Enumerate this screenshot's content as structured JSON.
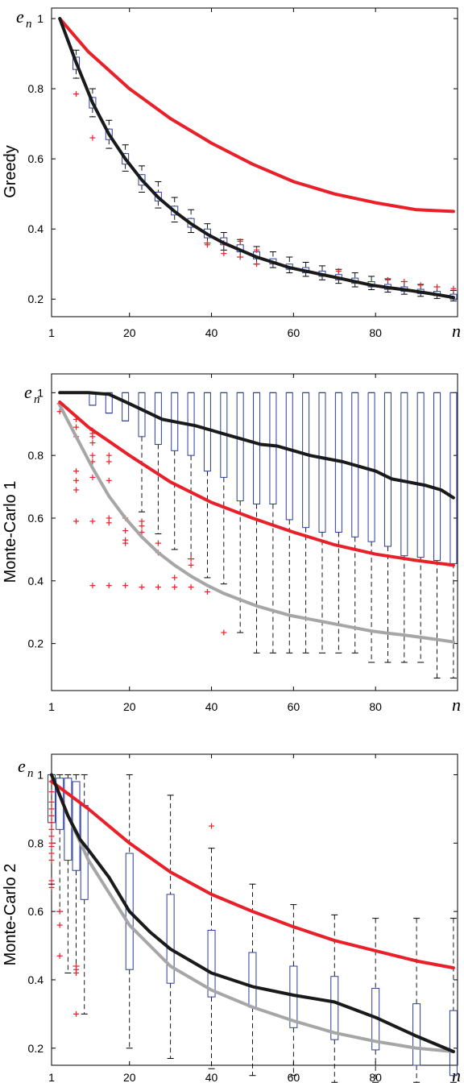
{
  "chart_data": [
    {
      "type": "line",
      "panel": "Greedy",
      "ylabel": "Greedy",
      "ysym": "e",
      "ysub": "n",
      "xsym": "n",
      "xlim": [
        1,
        100
      ],
      "ylim": [
        0.15,
        1.03
      ],
      "xticks": [
        "1",
        "20",
        "40",
        "60",
        "80"
      ],
      "xtick_values": [
        1,
        20,
        40,
        60,
        80
      ],
      "yticks": [
        "0.2",
        "0.4",
        "0.6",
        "0.8",
        "1"
      ],
      "ytick_values": [
        0.2,
        0.4,
        0.6,
        0.8,
        1
      ],
      "series": [
        {
          "color": "#e8202a",
          "x": [
            3,
            10,
            20,
            30,
            40,
            50,
            60,
            70,
            80,
            90,
            99
          ],
          "y": [
            1.0,
            0.905,
            0.8,
            0.715,
            0.645,
            0.585,
            0.535,
            0.5,
            0.475,
            0.455,
            0.45
          ]
        },
        {
          "color": "#1a1a1a",
          "x": [
            3,
            7,
            11,
            15,
            19,
            23,
            27,
            31,
            35,
            39,
            43,
            47,
            51,
            55,
            59,
            63,
            67,
            71,
            75,
            79,
            83,
            87,
            91,
            95,
            99
          ],
          "y": [
            1.0,
            0.875,
            0.76,
            0.67,
            0.6,
            0.54,
            0.49,
            0.45,
            0.415,
            0.385,
            0.36,
            0.34,
            0.32,
            0.305,
            0.29,
            0.28,
            0.27,
            0.26,
            0.25,
            0.24,
            0.233,
            0.227,
            0.22,
            0.213,
            0.205
          ]
        }
      ],
      "boxes": [
        {
          "x": 7,
          "q1": 0.855,
          "q3": 0.89,
          "lo": 0.83,
          "hi": 0.91
        },
        {
          "x": 11,
          "q1": 0.745,
          "q3": 0.775,
          "lo": 0.72,
          "hi": 0.8
        },
        {
          "x": 15,
          "q1": 0.655,
          "q3": 0.685,
          "lo": 0.63,
          "hi": 0.71
        },
        {
          "x": 19,
          "q1": 0.585,
          "q3": 0.615,
          "lo": 0.565,
          "hi": 0.64
        },
        {
          "x": 23,
          "q1": 0.525,
          "q3": 0.555,
          "lo": 0.505,
          "hi": 0.58
        },
        {
          "x": 27,
          "q1": 0.48,
          "q3": 0.505,
          "lo": 0.46,
          "hi": 0.535
        },
        {
          "x": 31,
          "q1": 0.44,
          "q3": 0.465,
          "lo": 0.42,
          "hi": 0.49
        },
        {
          "x": 35,
          "q1": 0.405,
          "q3": 0.43,
          "lo": 0.39,
          "hi": 0.455
        },
        {
          "x": 39,
          "q1": 0.375,
          "q3": 0.4,
          "lo": 0.36,
          "hi": 0.415
        },
        {
          "x": 43,
          "q1": 0.355,
          "q3": 0.375,
          "lo": 0.34,
          "hi": 0.39
        },
        {
          "x": 47,
          "q1": 0.335,
          "q3": 0.355,
          "lo": 0.32,
          "hi": 0.37
        },
        {
          "x": 51,
          "q1": 0.315,
          "q3": 0.335,
          "lo": 0.3,
          "hi": 0.35
        },
        {
          "x": 55,
          "q1": 0.3,
          "q3": 0.315,
          "lo": 0.29,
          "hi": 0.335
        },
        {
          "x": 59,
          "q1": 0.285,
          "q3": 0.3,
          "lo": 0.275,
          "hi": 0.32
        },
        {
          "x": 63,
          "q1": 0.275,
          "q3": 0.29,
          "lo": 0.265,
          "hi": 0.305
        },
        {
          "x": 67,
          "q1": 0.265,
          "q3": 0.28,
          "lo": 0.255,
          "hi": 0.295
        },
        {
          "x": 71,
          "q1": 0.255,
          "q3": 0.27,
          "lo": 0.245,
          "hi": 0.285
        },
        {
          "x": 75,
          "q1": 0.245,
          "q3": 0.26,
          "lo": 0.235,
          "hi": 0.275
        },
        {
          "x": 79,
          "q1": 0.235,
          "q3": 0.25,
          "lo": 0.227,
          "hi": 0.265
        },
        {
          "x": 83,
          "q1": 0.228,
          "q3": 0.242,
          "lo": 0.22,
          "hi": 0.258
        },
        {
          "x": 87,
          "q1": 0.222,
          "q3": 0.235,
          "lo": 0.214,
          "hi": 0.25
        },
        {
          "x": 91,
          "q1": 0.216,
          "q3": 0.228,
          "lo": 0.208,
          "hi": 0.242
        },
        {
          "x": 95,
          "q1": 0.21,
          "q3": 0.222,
          "lo": 0.202,
          "hi": 0.235
        },
        {
          "x": 99,
          "q1": 0.2,
          "q3": 0.214,
          "lo": 0.195,
          "hi": 0.225
        }
      ],
      "outliers": [
        [
          7,
          0.785
        ],
        [
          11,
          0.66
        ],
        [
          39,
          0.36
        ],
        [
          39,
          0.355
        ],
        [
          43,
          0.33
        ],
        [
          43,
          0.36
        ],
        [
          47,
          0.32
        ],
        [
          47,
          0.365
        ],
        [
          51,
          0.3
        ],
        [
          51,
          0.34
        ],
        [
          71,
          0.28
        ],
        [
          83,
          0.255
        ],
        [
          87,
          0.25
        ],
        [
          91,
          0.24
        ],
        [
          95,
          0.235
        ],
        [
          99,
          0.23
        ]
      ]
    },
    {
      "type": "line",
      "panel": "Monte-Carlo 1",
      "ylabel": "Monte-Carlo 1",
      "ysym": "e",
      "ysub": "n",
      "xsym": "n",
      "xlim": [
        1,
        100
      ],
      "ylim": [
        0.05,
        1.06
      ],
      "xticks": [
        "1",
        "20",
        "40",
        "60",
        "80"
      ],
      "xtick_values": [
        1,
        20,
        40,
        60,
        80
      ],
      "yticks": [
        "0.2",
        "0.4",
        "0.6",
        "0.8",
        "1"
      ],
      "ytick_values": [
        0.2,
        0.4,
        0.6,
        0.8,
        1
      ],
      "series": [
        {
          "color": "#a6a6a6",
          "x": [
            3,
            7,
            11,
            15,
            19,
            23,
            27,
            31,
            35,
            39,
            43,
            47,
            51,
            55,
            59,
            63,
            67,
            71,
            75,
            79,
            83,
            87,
            91,
            95,
            99
          ],
          "y": [
            0.96,
            0.86,
            0.76,
            0.67,
            0.6,
            0.54,
            0.49,
            0.45,
            0.415,
            0.385,
            0.36,
            0.34,
            0.32,
            0.305,
            0.29,
            0.28,
            0.27,
            0.26,
            0.25,
            0.24,
            0.233,
            0.227,
            0.22,
            0.213,
            0.205
          ]
        },
        {
          "color": "#e8202a",
          "x": [
            3,
            10,
            20,
            30,
            40,
            50,
            60,
            70,
            80,
            90,
            99
          ],
          "y": [
            0.97,
            0.89,
            0.8,
            0.715,
            0.65,
            0.6,
            0.555,
            0.515,
            0.485,
            0.465,
            0.45
          ]
        },
        {
          "color": "#1a1a1a",
          "x": [
            3,
            10,
            15,
            20,
            24,
            28,
            32,
            36,
            40,
            44,
            48,
            52,
            56,
            60,
            64,
            68,
            72,
            76,
            80,
            84,
            88,
            92,
            96,
            99
          ],
          "y": [
            1.0,
            1.0,
            0.995,
            0.965,
            0.94,
            0.915,
            0.905,
            0.895,
            0.88,
            0.865,
            0.85,
            0.835,
            0.83,
            0.815,
            0.8,
            0.79,
            0.78,
            0.765,
            0.75,
            0.725,
            0.715,
            0.705,
            0.69,
            0.665
          ]
        }
      ],
      "boxes": [
        {
          "x": 11,
          "q1": 0.96,
          "q3": 1.0,
          "lo": 0.96,
          "hi": 1.0
        },
        {
          "x": 15,
          "q1": 0.935,
          "q3": 1.0,
          "lo": 0.935,
          "hi": 1.0
        },
        {
          "x": 19,
          "q1": 0.91,
          "q3": 1.0,
          "lo": 0.91,
          "hi": 1.0
        },
        {
          "x": 23,
          "q1": 0.86,
          "q3": 1.0,
          "lo": 0.62,
          "hi": 1.0
        },
        {
          "x": 27,
          "q1": 0.835,
          "q3": 1.0,
          "lo": 0.55,
          "hi": 1.0
        },
        {
          "x": 31,
          "q1": 0.815,
          "q3": 1.0,
          "lo": 0.5,
          "hi": 1.0
        },
        {
          "x": 35,
          "q1": 0.8,
          "q3": 1.0,
          "lo": 0.47,
          "hi": 1.0
        },
        {
          "x": 39,
          "q1": 0.75,
          "q3": 1.0,
          "lo": 0.41,
          "hi": 1.0
        },
        {
          "x": 43,
          "q1": 0.73,
          "q3": 1.0,
          "lo": 0.39,
          "hi": 1.0
        },
        {
          "x": 47,
          "q1": 0.655,
          "q3": 1.0,
          "lo": 0.235,
          "hi": 1.0
        },
        {
          "x": 51,
          "q1": 0.645,
          "q3": 1.0,
          "lo": 0.17,
          "hi": 1.0
        },
        {
          "x": 55,
          "q1": 0.645,
          "q3": 1.0,
          "lo": 0.17,
          "hi": 1.0
        },
        {
          "x": 59,
          "q1": 0.595,
          "q3": 1.0,
          "lo": 0.17,
          "hi": 1.0
        },
        {
          "x": 63,
          "q1": 0.57,
          "q3": 1.0,
          "lo": 0.17,
          "hi": 1.0
        },
        {
          "x": 67,
          "q1": 0.555,
          "q3": 1.0,
          "lo": 0.17,
          "hi": 1.0
        },
        {
          "x": 71,
          "q1": 0.555,
          "q3": 1.0,
          "lo": 0.17,
          "hi": 1.0
        },
        {
          "x": 75,
          "q1": 0.54,
          "q3": 1.0,
          "lo": 0.17,
          "hi": 1.0
        },
        {
          "x": 79,
          "q1": 0.525,
          "q3": 1.0,
          "lo": 0.14,
          "hi": 1.0
        },
        {
          "x": 83,
          "q1": 0.51,
          "q3": 1.0,
          "lo": 0.14,
          "hi": 1.0
        },
        {
          "x": 87,
          "q1": 0.48,
          "q3": 1.0,
          "lo": 0.14,
          "hi": 1.0
        },
        {
          "x": 91,
          "q1": 0.475,
          "q3": 1.0,
          "lo": 0.14,
          "hi": 1.0
        },
        {
          "x": 95,
          "q1": 0.465,
          "q3": 1.0,
          "lo": 0.09,
          "hi": 1.0
        },
        {
          "x": 99,
          "q1": 0.455,
          "q3": 1.0,
          "lo": 0.09,
          "hi": 1.0
        }
      ],
      "outliers": [
        [
          3,
          0.965
        ],
        [
          3,
          0.94
        ],
        [
          7,
          0.915
        ],
        [
          7,
          0.89
        ],
        [
          7,
          0.86
        ],
        [
          7,
          0.75
        ],
        [
          7,
          0.72
        ],
        [
          7,
          0.69
        ],
        [
          7,
          0.59
        ],
        [
          11,
          0.88
        ],
        [
          11,
          0.87
        ],
        [
          11,
          0.86
        ],
        [
          11,
          0.84
        ],
        [
          11,
          0.8
        ],
        [
          11,
          0.78
        ],
        [
          11,
          0.73
        ],
        [
          11,
          0.59
        ],
        [
          11,
          0.385
        ],
        [
          15,
          0.8
        ],
        [
          15,
          0.78
        ],
        [
          15,
          0.72
        ],
        [
          15,
          0.6
        ],
        [
          15,
          0.585
        ],
        [
          15,
          0.385
        ],
        [
          19,
          0.6
        ],
        [
          19,
          0.56
        ],
        [
          19,
          0.53
        ],
        [
          19,
          0.52
        ],
        [
          19,
          0.385
        ],
        [
          23,
          0.59
        ],
        [
          23,
          0.575
        ],
        [
          23,
          0.555
        ],
        [
          23,
          0.38
        ],
        [
          27,
          0.52
        ],
        [
          27,
          0.49
        ],
        [
          27,
          0.38
        ],
        [
          31,
          0.41
        ],
        [
          31,
          0.38
        ],
        [
          35,
          0.47
        ],
        [
          35,
          0.45
        ],
        [
          35,
          0.38
        ],
        [
          39,
          0.365
        ],
        [
          43,
          0.235
        ]
      ]
    },
    {
      "type": "line",
      "panel": "Monte-Carlo 2",
      "ylabel": "Monte-Carlo 2",
      "ysym": "e",
      "ysub": "n",
      "xsym": "n",
      "xlim": [
        1,
        100
      ],
      "ylim": [
        0.15,
        1.06
      ],
      "xticks": [
        "1",
        "20",
        "40",
        "60",
        "80"
      ],
      "xtick_values": [
        1,
        20,
        40,
        60,
        80
      ],
      "yticks": [
        "0.2",
        "0.4",
        "0.6",
        "0.8",
        "1"
      ],
      "ytick_values": [
        0.2,
        0.4,
        0.6,
        0.8,
        1
      ],
      "series": [
        {
          "color": "#a6a6a6",
          "x": [
            1,
            5,
            10,
            20,
            30,
            40,
            50,
            60,
            70,
            80,
            90,
            99
          ],
          "y": [
            1.0,
            0.88,
            0.75,
            0.56,
            0.44,
            0.37,
            0.32,
            0.28,
            0.245,
            0.22,
            0.2,
            0.19
          ]
        },
        {
          "color": "#e8202a",
          "x": [
            1,
            10,
            20,
            30,
            40,
            50,
            60,
            70,
            80,
            90,
            99
          ],
          "y": [
            0.98,
            0.9,
            0.8,
            0.715,
            0.65,
            0.6,
            0.555,
            0.515,
            0.485,
            0.455,
            0.435
          ]
        },
        {
          "color": "#1a1a1a",
          "x": [
            1,
            5,
            8,
            10,
            15,
            20,
            25,
            30,
            35,
            40,
            50,
            60,
            70,
            80,
            90,
            99
          ],
          "y": [
            1.0,
            0.88,
            0.81,
            0.78,
            0.7,
            0.6,
            0.54,
            0.49,
            0.455,
            0.42,
            0.38,
            0.355,
            0.335,
            0.29,
            0.235,
            0.19
          ]
        }
      ],
      "boxes": [
        {
          "x": 1,
          "q1": 0.86,
          "q3": 1.0,
          "lo": 0.68,
          "hi": 1.0
        },
        {
          "x": 3,
          "q1": 0.84,
          "q3": 0.99,
          "lo": 0.6,
          "hi": 1.0
        },
        {
          "x": 5,
          "q1": 0.75,
          "q3": 0.99,
          "lo": 0.42,
          "hi": 1.0
        },
        {
          "x": 7,
          "q1": 0.72,
          "q3": 0.98,
          "lo": 0.44,
          "hi": 1.0
        },
        {
          "x": 9,
          "q1": 0.635,
          "q3": 0.91,
          "lo": 0.3,
          "hi": 1.0
        },
        {
          "x": 20,
          "q1": 0.43,
          "q3": 0.77,
          "lo": 0.2,
          "hi": 1.0
        },
        {
          "x": 30,
          "q1": 0.39,
          "q3": 0.65,
          "lo": 0.17,
          "hi": 0.94
        },
        {
          "x": 40,
          "q1": 0.35,
          "q3": 0.545,
          "lo": 0.14,
          "hi": 0.785
        },
        {
          "x": 50,
          "q1": 0.32,
          "q3": 0.48,
          "lo": 0.12,
          "hi": 0.68
        },
        {
          "x": 60,
          "q1": 0.26,
          "q3": 0.44,
          "lo": 0.12,
          "hi": 0.62
        },
        {
          "x": 70,
          "q1": 0.225,
          "q3": 0.41,
          "lo": 0.1,
          "hi": 0.59
        },
        {
          "x": 80,
          "q1": 0.195,
          "q3": 0.375,
          "lo": 0.1,
          "hi": 0.58
        },
        {
          "x": 90,
          "q1": 0.15,
          "q3": 0.33,
          "lo": 0.1,
          "hi": 0.58
        },
        {
          "x": 99,
          "q1": 0.12,
          "q3": 0.31,
          "lo": 0.1,
          "hi": 0.58
        }
      ],
      "outliers": [
        [
          1,
          0.98
        ],
        [
          1,
          0.95
        ],
        [
          1,
          0.92
        ],
        [
          1,
          0.9
        ],
        [
          1,
          0.88
        ],
        [
          1,
          0.86
        ],
        [
          1,
          0.84
        ],
        [
          1,
          0.82
        ],
        [
          1,
          0.8
        ],
        [
          1,
          0.79
        ],
        [
          1,
          0.77
        ],
        [
          1,
          0.75
        ],
        [
          1,
          0.69
        ],
        [
          1,
          0.67
        ],
        [
          3,
          0.6
        ],
        [
          3,
          0.56
        ],
        [
          3,
          0.47
        ],
        [
          7,
          0.44
        ],
        [
          7,
          0.43
        ],
        [
          7,
          0.42
        ],
        [
          7,
          0.3
        ],
        [
          40,
          0.85
        ]
      ]
    }
  ]
}
